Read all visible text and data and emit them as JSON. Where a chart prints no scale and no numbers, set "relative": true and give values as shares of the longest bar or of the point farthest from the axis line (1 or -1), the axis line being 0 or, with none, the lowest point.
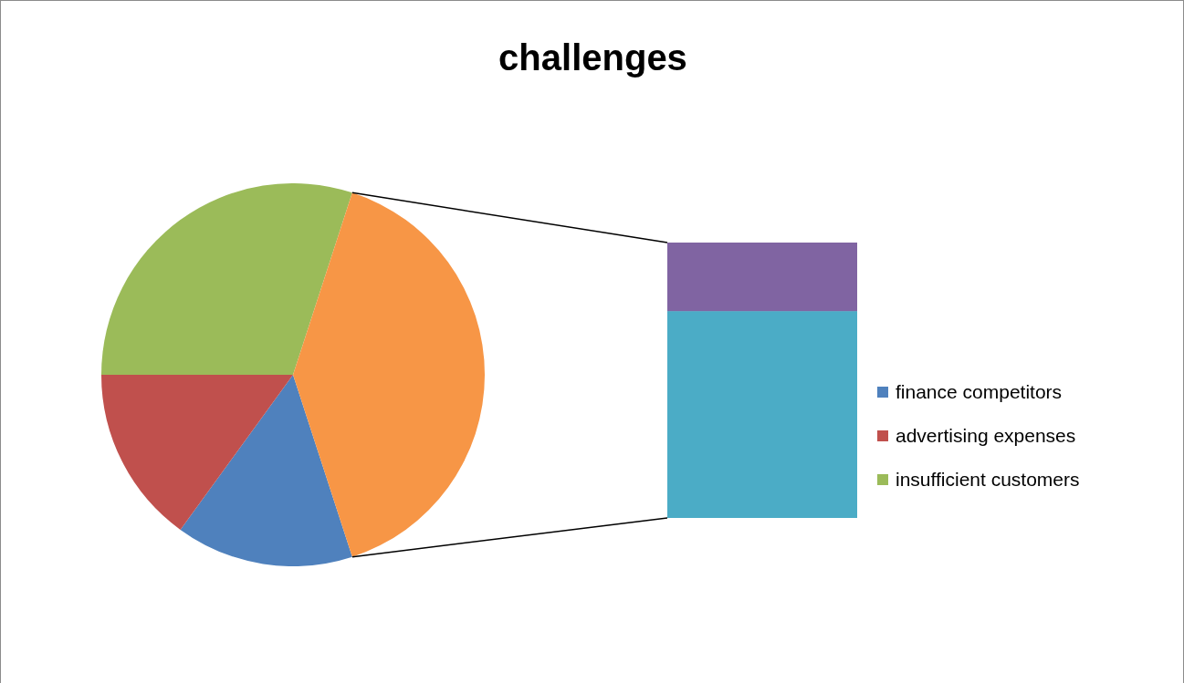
{
  "chart_data": [
    {
      "type": "pie",
      "title": "challenges",
      "categories": [
        "finance competitors",
        "advertising expenses",
        "insufficient customers",
        null
      ],
      "values": [
        15,
        15,
        30,
        40
      ],
      "colors": [
        "#4f81bd",
        "#c0504d",
        "#9bbb59",
        "#f79646"
      ],
      "legend": "right"
    },
    {
      "type": "bar",
      "categories": [
        null
      ],
      "stacked": true,
      "relative": true,
      "series": [
        {
          "color": "#4bacc6",
          "values": [
            0.75
          ]
        },
        {
          "color": "#8064a2",
          "values": [
            0.25
          ]
        }
      ]
    }
  ]
}
